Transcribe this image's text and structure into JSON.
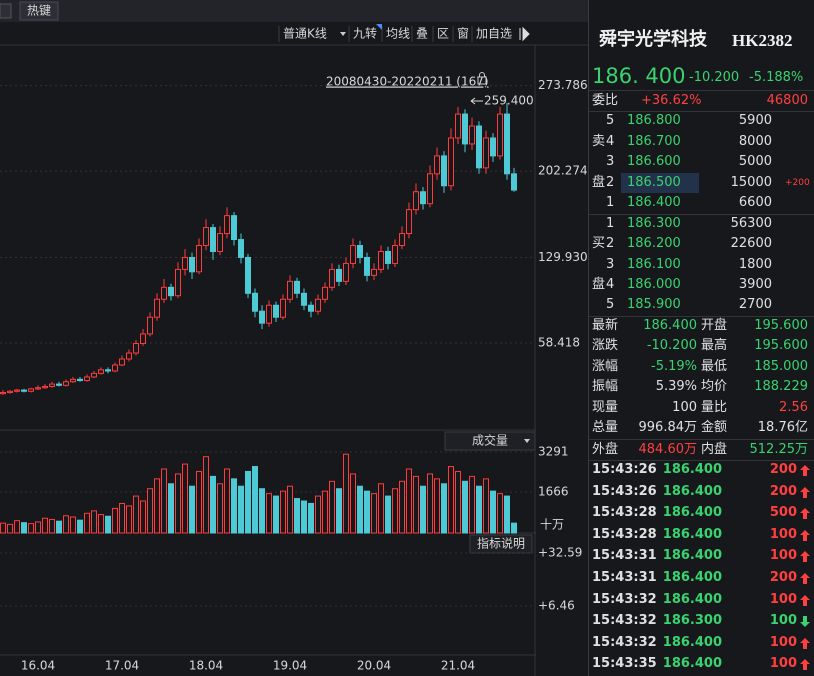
{
  "hotkey": "热键",
  "toolbar": [
    "普通K线",
    "九转",
    "均线",
    "叠",
    "区",
    "窗",
    "加自选"
  ],
  "chart_data": {
    "type": "candlestick",
    "range_label": "20080430-20220211 (167)",
    "peak_label": "259.400",
    "up_color": "#ff3b3b",
    "down_color": "#4ec9d6",
    "ylim": [
      -14.4,
      307.8
    ],
    "yticks": [
      273.786,
      202.274,
      {
        "value": 129.93,
        "label": "129.930"
      },
      58.418
    ],
    "grid": true,
    "categories": [
      null,
      null,
      null,
      null,
      null,
      "16.04",
      null,
      null,
      null,
      null,
      null,
      null,
      null,
      null,
      null,
      null,
      null,
      "17.04",
      null,
      null,
      null,
      null,
      null,
      null,
      null,
      null,
      null,
      null,
      null,
      "18.04",
      null,
      null,
      null,
      null,
      null,
      null,
      null,
      null,
      null,
      null,
      null,
      "19.04",
      null,
      null,
      null,
      null,
      null,
      null,
      null,
      null,
      null,
      null,
      null,
      "20.04",
      null,
      null,
      null,
      null,
      null,
      null,
      null,
      null,
      null,
      null,
      null,
      "21.04",
      null,
      null,
      null,
      null,
      null,
      null,
      null,
      null
    ],
    "ohlc": [
      [
        16,
        19,
        15,
        17
      ],
      [
        17,
        19,
        16,
        18
      ],
      [
        18,
        20,
        17,
        19
      ],
      [
        19,
        20,
        17,
        18
      ],
      [
        18,
        21,
        17,
        20
      ],
      [
        20,
        23,
        19,
        21
      ],
      [
        21,
        24,
        20,
        22
      ],
      [
        22,
        26,
        21,
        24
      ],
      [
        24,
        26,
        22,
        23
      ],
      [
        23,
        28,
        22,
        26
      ],
      [
        26,
        30,
        25,
        28
      ],
      [
        28,
        30,
        26,
        27
      ],
      [
        27,
        32,
        26,
        30
      ],
      [
        30,
        35,
        29,
        33
      ],
      [
        33,
        38,
        32,
        36
      ],
      [
        36,
        38,
        33,
        35
      ],
      [
        35,
        42,
        34,
        40
      ],
      [
        40,
        48,
        39,
        45
      ],
      [
        45,
        53,
        43,
        50
      ],
      [
        50,
        61,
        48,
        58
      ],
      [
        58,
        70,
        56,
        66
      ],
      [
        66,
        84,
        64,
        80
      ],
      [
        80,
        100,
        77,
        95
      ],
      [
        95,
        112,
        92,
        105
      ],
      [
        105,
        108,
        94,
        98
      ],
      [
        98,
        126,
        96,
        120
      ],
      [
        120,
        137,
        115,
        130
      ],
      [
        130,
        134,
        112,
        118
      ],
      [
        118,
        146,
        116,
        140
      ],
      [
        140,
        162,
        136,
        155
      ],
      [
        155,
        158,
        128,
        135
      ],
      [
        135,
        156,
        132,
        150
      ],
      [
        150,
        172,
        146,
        165
      ],
      [
        165,
        168,
        140,
        145
      ],
      [
        145,
        150,
        125,
        130
      ],
      [
        130,
        133,
        96,
        100
      ],
      [
        100,
        104,
        80,
        85
      ],
      [
        85,
        90,
        70,
        75
      ],
      [
        75,
        94,
        72,
        90
      ],
      [
        90,
        93,
        76,
        80
      ],
      [
        80,
        99,
        78,
        95
      ],
      [
        95,
        115,
        92,
        110
      ],
      [
        110,
        113,
        96,
        100
      ],
      [
        100,
        104,
        86,
        90
      ],
      [
        90,
        93,
        80,
        85
      ],
      [
        85,
        99,
        82,
        95
      ],
      [
        95,
        109,
        92,
        105
      ],
      [
        105,
        125,
        102,
        120
      ],
      [
        120,
        124,
        106,
        110
      ],
      [
        110,
        130,
        107,
        125
      ],
      [
        125,
        146,
        121,
        140
      ],
      [
        140,
        144,
        125,
        130
      ],
      [
        130,
        134,
        110,
        115
      ],
      [
        115,
        125,
        111,
        120
      ],
      [
        120,
        140,
        117,
        135
      ],
      [
        135,
        139,
        120,
        125
      ],
      [
        125,
        145,
        122,
        140
      ],
      [
        140,
        156,
        137,
        150
      ],
      [
        150,
        176,
        146,
        170
      ],
      [
        170,
        192,
        166,
        185
      ],
      [
        185,
        189,
        170,
        175
      ],
      [
        175,
        207,
        172,
        200
      ],
      [
        200,
        222,
        195,
        215
      ],
      [
        215,
        219,
        184,
        190
      ],
      [
        190,
        238,
        186,
        230
      ],
      [
        230,
        256,
        225,
        250
      ],
      [
        250,
        254,
        218,
        225
      ],
      [
        225,
        247,
        220,
        240
      ],
      [
        240,
        244,
        200,
        205
      ],
      [
        205,
        236,
        200,
        230
      ],
      [
        230,
        234,
        210,
        215
      ],
      [
        215,
        256,
        212,
        250
      ],
      [
        250,
        259.4,
        195,
        200
      ],
      [
        200,
        205,
        185,
        186.4
      ]
    ],
    "volume": {
      "label": "成交量",
      "unit": "十万",
      "ylim": [
        0,
        3575
      ],
      "yticks": [
        3291,
        1666
      ],
      "values": [
        400,
        350,
        500,
        420,
        380,
        450,
        600,
        550,
        480,
        700,
        650,
        520,
        800,
        900,
        750,
        680,
        1000,
        1200,
        1100,
        1500,
        1300,
        1800,
        2200,
        2600,
        2000,
        2400,
        2800,
        1900,
        2500,
        3100,
        2300,
        2000,
        2600,
        2200,
        1900,
        2500,
        2700,
        1800,
        1600,
        1500,
        1700,
        1900,
        1400,
        1300,
        1200,
        1500,
        1700,
        2100,
        1800,
        3200,
        2400,
        1900,
        1700,
        1600,
        2000,
        1500,
        1800,
        2100,
        2600,
        2300,
        1900,
        2400,
        2200,
        2000,
        2700,
        2500,
        2100,
        2300,
        1900,
        2200,
        1700,
        1600,
        1500,
        400
      ]
    },
    "macd": {
      "button": "指标说明",
      "ylim": [
        -17.7,
        41.5
      ],
      "yticks": [
        {
          "value": 32.59,
          "label": "+32.59"
        },
        {
          "value": 6.46,
          "label": "+6.46"
        }
      ]
    }
  },
  "quote": {
    "name": "舜宇光学科技",
    "code": "HK2382",
    "price": "186. 400",
    "change": "-10.200",
    "pct": "-5.188%",
    "color": "#39d36f"
  },
  "weibi": {
    "label": "委比",
    "pct": "+36.62%",
    "diff": "46800",
    "color": "#ff4040"
  },
  "asks": {
    "side": [
      "卖",
      "盘"
    ],
    "rows": [
      {
        "level": "5",
        "price": "186.800",
        "qty": "5900"
      },
      {
        "level": "4",
        "price": "186.700",
        "qty": "8000"
      },
      {
        "level": "3",
        "price": "186.600",
        "qty": "5000"
      },
      {
        "level": "2",
        "price": "186.500",
        "qty": "15000",
        "change": "+200",
        "selected": true
      },
      {
        "level": "1",
        "price": "186.400",
        "qty": "6600"
      }
    ]
  },
  "bids": {
    "side": [
      "买",
      "盘"
    ],
    "rows": [
      {
        "level": "1",
        "price": "186.300",
        "qty": "56300"
      },
      {
        "level": "2",
        "price": "186.200",
        "qty": "22600"
      },
      {
        "level": "3",
        "price": "186.100",
        "qty": "1800"
      },
      {
        "level": "4",
        "price": "186.000",
        "qty": "3900"
      },
      {
        "level": "5",
        "price": "185.900",
        "qty": "2700"
      }
    ]
  },
  "stats": [
    {
      "label": "最新",
      "value": "186.400",
      "color": "#39d36f"
    },
    {
      "label": "开盘",
      "value": "195.600",
      "color": "#39d36f"
    },
    {
      "label": "涨跌",
      "value": "-10.200",
      "color": "#39d36f"
    },
    {
      "label": "最高",
      "value": "195.600",
      "color": "#39d36f"
    },
    {
      "label": "涨幅",
      "value": "-5.19%",
      "color": "#39d36f"
    },
    {
      "label": "最低",
      "value": "185.000",
      "color": "#39d36f"
    },
    {
      "label": "振幅",
      "value": "5.39%",
      "color": "#e0e0e0"
    },
    {
      "label": "均价",
      "value": "188.229",
      "color": "#39d36f"
    },
    {
      "label": "现量",
      "value": "100",
      "color": "#e0e0e0"
    },
    {
      "label": "量比",
      "value": "2.56",
      "color": "#ff4040"
    },
    {
      "label": "总量",
      "value": "996.84万",
      "color": "#e0e0e0"
    },
    {
      "label": "金额",
      "value": "18.76亿",
      "color": "#e0e0e0"
    },
    {
      "label": "外盘",
      "value": "484.60万",
      "color": "#ff4040"
    },
    {
      "label": "内盘",
      "value": "512.25万",
      "color": "#39d36f"
    }
  ],
  "trades": [
    {
      "time": "15:43:26",
      "price": "186.400",
      "qty": "200",
      "dir": "up"
    },
    {
      "time": "15:43:26",
      "price": "186.400",
      "qty": "200",
      "dir": "up"
    },
    {
      "time": "15:43:28",
      "price": "186.400",
      "qty": "500",
      "dir": "up"
    },
    {
      "time": "15:43:28",
      "price": "186.400",
      "qty": "100",
      "dir": "up"
    },
    {
      "time": "15:43:31",
      "price": "186.400",
      "qty": "100",
      "dir": "up"
    },
    {
      "time": "15:43:31",
      "price": "186.400",
      "qty": "200",
      "dir": "up"
    },
    {
      "time": "15:43:32",
      "price": "186.400",
      "qty": "100",
      "dir": "up"
    },
    {
      "time": "15:43:32",
      "price": "186.300",
      "qty": "100",
      "dir": "down"
    },
    {
      "time": "15:43:32",
      "price": "186.400",
      "qty": "100",
      "dir": "up"
    },
    {
      "time": "15:43:35",
      "price": "186.400",
      "qty": "100",
      "dir": "up"
    }
  ]
}
